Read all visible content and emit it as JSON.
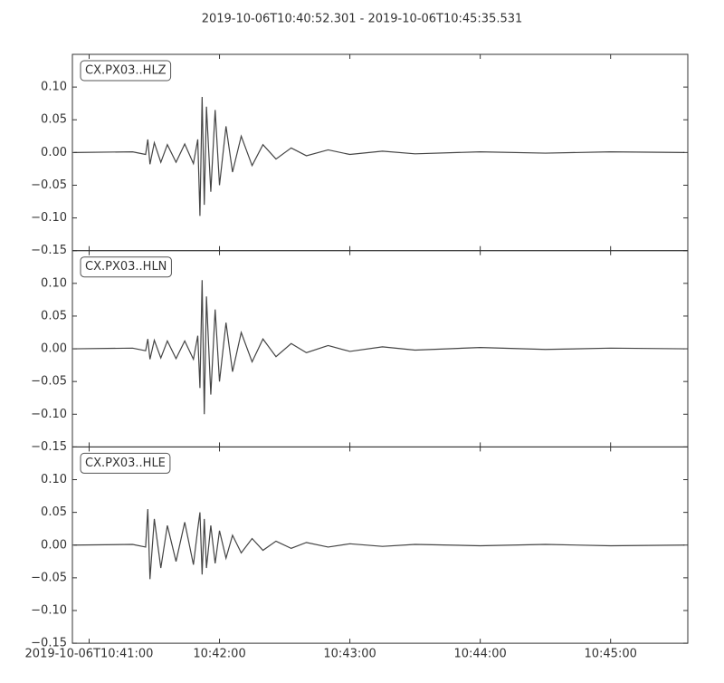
{
  "chart_data": {
    "type": "line",
    "title": "2019-10-06T10:40:52.301  -  2019-10-06T10:45:35.531",
    "x": [
      "2019-10-06T10:40:53",
      "2019-10-06T10:41:20",
      "2019-10-06T10:41:26",
      "2019-10-06T10:41:27",
      "2019-10-06T10:41:28",
      "2019-10-06T10:41:30",
      "2019-10-06T10:41:33",
      "2019-10-06T10:41:36",
      "2019-10-06T10:41:40",
      "2019-10-06T10:41:44",
      "2019-10-06T10:41:48",
      "2019-10-06T10:41:50",
      "2019-10-06T10:41:51",
      "2019-10-06T10:41:52",
      "2019-10-06T10:41:53",
      "2019-10-06T10:41:54",
      "2019-10-06T10:41:56",
      "2019-10-06T10:41:58",
      "2019-10-06T10:42:00",
      "2019-10-06T10:42:03",
      "2019-10-06T10:42:06",
      "2019-10-06T10:42:10",
      "2019-10-06T10:42:15",
      "2019-10-06T10:42:20",
      "2019-10-06T10:42:26",
      "2019-10-06T10:42:33",
      "2019-10-06T10:42:40",
      "2019-10-06T10:42:50",
      "2019-10-06T10:43:00",
      "2019-10-06T10:43:15",
      "2019-10-06T10:43:30",
      "2019-10-06T10:44:00",
      "2019-10-06T10:44:30",
      "2019-10-06T10:45:00",
      "2019-10-06T10:45:34"
    ],
    "xlim": [
      "2019-10-06T10:40:52.301",
      "2019-10-06T10:45:35.531"
    ],
    "xticks": [
      "2019-10-06T10:41:00",
      {
        "value": "2019-10-06T10:42:00",
        "label": "10:42:00"
      },
      {
        "value": "2019-10-06T10:43:00",
        "label": "10:43:00"
      },
      {
        "value": "2019-10-06T10:44:00",
        "label": "10:44:00"
      },
      {
        "value": "2019-10-06T10:45:00",
        "label": "10:45:00"
      }
    ],
    "ylim": [
      -0.15,
      0.15
    ],
    "yticks": [
      {
        "value": 0.1,
        "label": "0.10"
      },
      {
        "value": 0.05,
        "label": "0.05"
      },
      {
        "value": 0,
        "label": "0.00"
      },
      {
        "value": -0.05,
        "label": "−0.05"
      },
      {
        "value": -0.1,
        "label": "−0.10"
      },
      {
        "value": -0.15,
        "label": "−0.15"
      }
    ],
    "series": [
      {
        "name": "CX.PX03..HLZ",
        "color": "#444444",
        "values": [
          0,
          0.001,
          -0.003,
          0.02,
          -0.018,
          0.015,
          -0.015,
          0.012,
          -0.015,
          0.013,
          -0.017,
          0.02,
          -0.097,
          0.085,
          -0.08,
          0.07,
          -0.06,
          0.065,
          -0.05,
          0.04,
          -0.03,
          0.025,
          -0.02,
          0.012,
          -0.01,
          0.007,
          -0.005,
          0.004,
          -0.003,
          0.002,
          -0.002,
          0.001,
          -0.001,
          0.001,
          0
        ]
      },
      {
        "name": "CX.PX03..HLN",
        "color": "#444444",
        "values": [
          0,
          0.001,
          -0.003,
          0.015,
          -0.016,
          0.013,
          -0.014,
          0.012,
          -0.015,
          0.012,
          -0.016,
          0.02,
          -0.06,
          0.105,
          -0.1,
          0.08,
          -0.07,
          0.06,
          -0.05,
          0.04,
          -0.035,
          0.025,
          -0.02,
          0.015,
          -0.012,
          0.008,
          -0.006,
          0.005,
          -0.004,
          0.003,
          -0.002,
          0.002,
          -0.001,
          0.001,
          0
        ]
      },
      {
        "name": "CX.PX03..HLE",
        "color": "#444444",
        "values": [
          0,
          0.001,
          -0.003,
          0.055,
          -0.052,
          0.04,
          -0.035,
          0.03,
          -0.025,
          0.035,
          -0.03,
          0.025,
          0.05,
          -0.045,
          0.04,
          -0.035,
          0.03,
          -0.028,
          0.022,
          -0.02,
          0.015,
          -0.012,
          0.01,
          -0.008,
          0.006,
          -0.005,
          0.004,
          -0.003,
          0.002,
          -0.002,
          0.001,
          -0.001,
          0.001,
          -0.001,
          0
        ]
      }
    ]
  }
}
